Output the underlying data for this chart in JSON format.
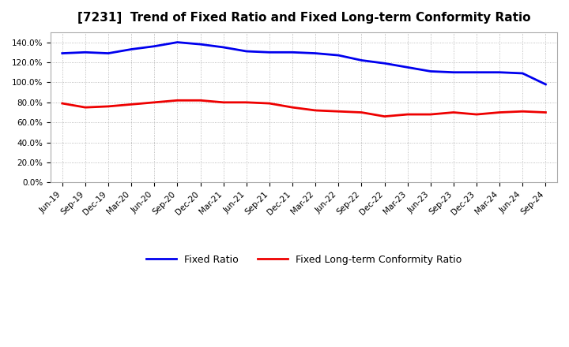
{
  "title": "[7231]  Trend of Fixed Ratio and Fixed Long-term Conformity Ratio",
  "fixed_ratio_label": "Fixed Ratio",
  "fixed_ratio_color": "#0000EE",
  "fixed_lt_label": "Fixed Long-term Conformity Ratio",
  "fixed_lt_color": "#EE0000",
  "x_labels": [
    "Jun-19",
    "Sep-19",
    "Dec-19",
    "Mar-20",
    "Jun-20",
    "Sep-20",
    "Dec-20",
    "Mar-21",
    "Jun-21",
    "Sep-21",
    "Dec-21",
    "Mar-22",
    "Jun-22",
    "Sep-22",
    "Dec-22",
    "Mar-23",
    "Jun-23",
    "Sep-23",
    "Dec-23",
    "Mar-24",
    "Jun-24",
    "Sep-24"
  ],
  "fixed_ratio_values": [
    129,
    130,
    129,
    133,
    136,
    140,
    138,
    135,
    131,
    130,
    130,
    129,
    127,
    122,
    119,
    115,
    111,
    110,
    110,
    110,
    109,
    98
  ],
  "fixed_lt_values": [
    79,
    75,
    76,
    78,
    80,
    82,
    82,
    80,
    80,
    79,
    75,
    72,
    71,
    70,
    66,
    68,
    68,
    70,
    68,
    70,
    71,
    70
  ],
  "ylim": [
    0,
    150
  ],
  "ytick_values": [
    0,
    20,
    40,
    60,
    80,
    100,
    120,
    140
  ],
  "background_color": "#FFFFFF",
  "plot_bg_color": "#FFFFFF",
  "grid_color": "#AAAAAA",
  "title_fontsize": 11,
  "tick_fontsize": 7.5,
  "legend_fontsize": 9,
  "line_width": 2.0
}
